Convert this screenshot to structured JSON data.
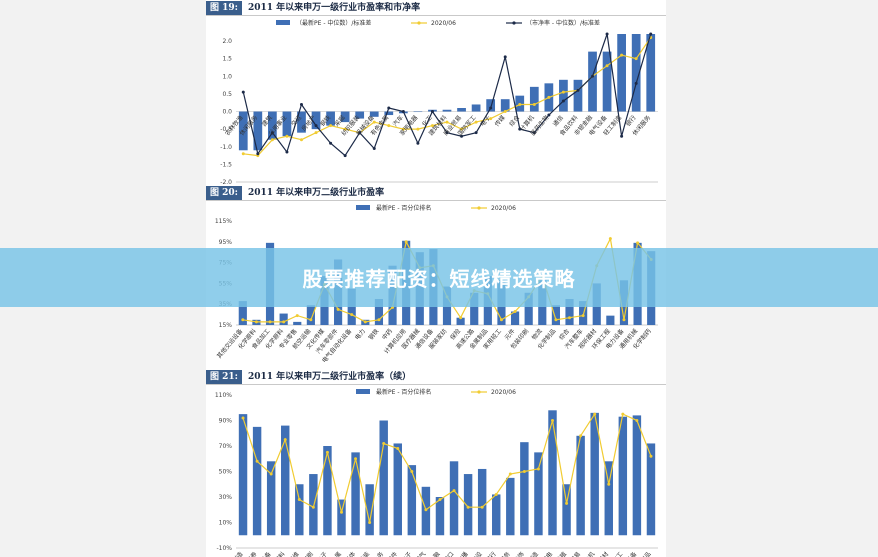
{
  "colors": {
    "bar": "#3f6fb5",
    "line": "#f1cc32",
    "line2": "#1c2a48",
    "banner": "#78c3e6"
  },
  "banner": {
    "text": "股票推荐配资：短线精选策略"
  },
  "chart_data": [
    {
      "type": "bar",
      "fig_num": "图 19:",
      "title": "2011 年以来申万一级行业市盈率和市净率",
      "categories": [
        "农林牧渔",
        "休闲服务",
        "建筑",
        "公用事业",
        "交运",
        "房地产",
        "钢铁",
        "采掘",
        "纺织服装",
        "机械设备",
        "有色金属",
        "汽车",
        "家用电器",
        "化工",
        "建筑材料",
        "商业贸易",
        "国防军工",
        "电子",
        "传媒",
        "综合",
        "计算机",
        "医药生物",
        "通信",
        "食品饮料",
        "非银金融",
        "电气设备",
        "轻工制造",
        "银行",
        "休闲服务"
      ],
      "ylim": [
        -2.0,
        2.2
      ],
      "yticks": [
        -2.0,
        -1.5,
        -1.0,
        -0.5,
        0.0,
        0.5,
        1.0,
        1.5,
        2.0
      ],
      "series": [
        {
          "name": "（最新PE - 中位数）/标准差",
          "kind": "bar",
          "values": [
            -1.1,
            -1.1,
            -0.8,
            -0.7,
            -0.6,
            -0.5,
            -0.4,
            -0.3,
            -0.2,
            -0.15,
            -0.1,
            -0.05,
            0.0,
            0.05,
            0.05,
            0.1,
            0.2,
            0.35,
            0.35,
            0.45,
            0.7,
            0.8,
            0.9,
            0.9,
            1.7,
            1.7,
            2.2,
            2.2,
            2.2
          ]
        },
        {
          "name": "2020/06",
          "kind": "line",
          "values": [
            -1.2,
            -1.25,
            -0.8,
            -0.7,
            -0.8,
            -0.6,
            -0.4,
            -0.5,
            -0.6,
            -0.3,
            -0.4,
            -0.5,
            -0.5,
            -0.4,
            -0.3,
            -0.5,
            -0.3,
            -0.2,
            0.0,
            0.2,
            0.2,
            0.4,
            0.55,
            0.6,
            1.0,
            1.3,
            1.6,
            1.5,
            2.1
          ]
        },
        {
          "name": "（市净率 - 中位数）/标准差",
          "kind": "line",
          "values": [
            0.55,
            -1.2,
            -0.6,
            -1.15,
            0.2,
            -0.4,
            -0.9,
            -1.25,
            -0.6,
            -1.05,
            0.1,
            0.0,
            -0.9,
            0.0,
            -0.6,
            -0.7,
            -0.6,
            0.1,
            1.55,
            -0.5,
            -0.6,
            -0.1,
            0.3,
            0.6,
            1.0,
            2.2,
            -0.7,
            0.8,
            2.2
          ]
        }
      ]
    },
    {
      "type": "bar",
      "fig_num": "图 20:",
      "title": "2011 年以来申万二级行业市盈率",
      "categories": [
        "其他交运设备",
        "化学原料",
        "食品加工",
        "化学原料",
        "专业零售",
        "航空运输",
        "文化传媒",
        "汽车零部件",
        "电气自动化设备",
        "电力",
        "钢铁",
        "中药",
        "计算机应用",
        "医疗器械",
        "通信设备",
        "服装家纺",
        "保险",
        "高速公路",
        "金属制品",
        "家用轻工",
        "元件",
        "包装印刷",
        "物流",
        "化学制品",
        "综合",
        "汽车整车",
        "视听器材",
        "环保工程",
        "电力设备",
        "通用机械",
        "化学制药"
      ],
      "ylim": [
        15,
        115
      ],
      "yticks": [
        15,
        35,
        55,
        75,
        95,
        115
      ],
      "series": [
        {
          "name": "最新PE - 百分位排名",
          "kind": "bar",
          "values": [
            38,
            20,
            94,
            26,
            18,
            34,
            62,
            78,
            50,
            20,
            40,
            72,
            96,
            85,
            88,
            52,
            22,
            46,
            62,
            58,
            28,
            46,
            58,
            34,
            40,
            38,
            55,
            24,
            58,
            94,
            86
          ]
        },
        {
          "name": "2020/06",
          "kind": "line",
          "values": [
            20,
            18,
            18,
            18,
            24,
            20,
            54,
            30,
            25,
            18,
            20,
            32,
            95,
            70,
            72,
            42,
            22,
            48,
            45,
            20,
            28,
            42,
            62,
            20,
            22,
            24,
            72,
            98,
            20,
            94,
            78
          ]
        }
      ]
    },
    {
      "type": "bar",
      "fig_num": "图 21:",
      "title": "2011 年以来申万二级行业市盈率（续）",
      "categories": [
        "饮料制造",
        "证券",
        "电源设备",
        "塑料",
        "化学纤维",
        "包装印刷",
        "光学光电子",
        "工业金属",
        "半导体",
        "地面兵装",
        "水务",
        "汽车零部件",
        "其他电子",
        "燃气",
        "多元金融",
        "港口",
        "营销传播",
        "基础建设",
        "银行",
        "医疗服务",
        "装修装饰",
        "饮料制造",
        "白色家电",
        "畜禽养殖",
        "贸易",
        "电机",
        "视听器材",
        "石油化工",
        "计算机设备",
        "金属制品"
      ],
      "ylim": [
        -10,
        110
      ],
      "yticks": [
        -10,
        10,
        30,
        50,
        70,
        90,
        110
      ],
      "series": [
        {
          "name": "最新PE - 百分位排名",
          "kind": "bar",
          "values": [
            95,
            85,
            58,
            86,
            40,
            48,
            70,
            28,
            65,
            40,
            90,
            72,
            55,
            38,
            30,
            58,
            48,
            52,
            32,
            45,
            73,
            65,
            98,
            40,
            78,
            96,
            58,
            93,
            94,
            72
          ]
        },
        {
          "name": "2020/06",
          "kind": "line",
          "values": [
            92,
            58,
            48,
            75,
            28,
            22,
            65,
            18,
            60,
            10,
            72,
            68,
            50,
            20,
            28,
            35,
            22,
            22,
            32,
            48,
            50,
            52,
            90,
            25,
            78,
            95,
            40,
            95,
            90,
            62
          ]
        }
      ]
    }
  ]
}
